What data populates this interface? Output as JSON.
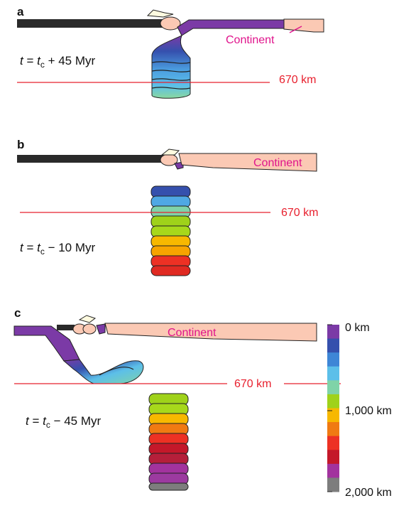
{
  "panels": [
    {
      "letter": "a",
      "time": {
        "t": "t",
        "eq": " = ",
        "tc": "t",
        "tc_sub": "c",
        "rest": " + 45 Myr"
      },
      "depth_label": "670 km",
      "continent_label": "Continent"
    },
    {
      "letter": "b",
      "time": {
        "t": "t",
        "eq": " = ",
        "tc": "t",
        "tc_sub": "c",
        "rest": " − 10 Myr"
      },
      "depth_label": "670 km",
      "continent_label": "Continent"
    },
    {
      "letter": "c",
      "time": {
        "t": "t",
        "eq": " = ",
        "tc": "t",
        "tc_sub": "c",
        "rest": " − 45 Myr"
      },
      "depth_label": "670 km",
      "continent_label": "Continent"
    }
  ],
  "depth_scale": {
    "top_label": "0 km",
    "mid_label": "1,000 km",
    "bottom_label": "2,000 km",
    "colors": [
      "#7b3aa6",
      "#3550ad",
      "#3e86d6",
      "#5cbfe9",
      "#7fd3a8",
      "#9fd21a",
      "#f7b800",
      "#f07a12",
      "#ed3124",
      "#c4182a",
      "#a2339e",
      "#7d7d7d"
    ]
  },
  "colors": {
    "plate": "#2a2a2a",
    "continent": "#fbc9b4",
    "depth_line": "#e8202e",
    "label_magenta": "#e0148c"
  }
}
